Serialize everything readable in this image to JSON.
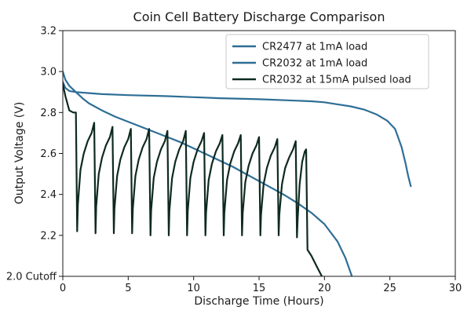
{
  "chart_data": {
    "type": "line",
    "title": "Coin Cell Battery Discharge Comparison",
    "xlabel": "Discharge Time (Hours)",
    "ylabel": "Output Voltage (V)",
    "xlim": [
      0,
      30
    ],
    "ylim": [
      2.0,
      3.2
    ],
    "x_ticks": [
      0,
      5,
      10,
      15,
      20,
      25,
      30
    ],
    "y_ticks": [
      2.0,
      2.2,
      2.4,
      2.6,
      2.8,
      3.0,
      3.2
    ],
    "y_tick_labels": [
      "2.0 Cutoff",
      "2.2",
      "2.4",
      "2.6",
      "2.8",
      "3.0",
      "3.2"
    ],
    "grid": false,
    "legend_position": "top-right",
    "series": [
      {
        "name": "CR2477 at 1mA load",
        "color": "#2e6e96",
        "points": [
          [
            0,
            2.95
          ],
          [
            0.2,
            2.92
          ],
          [
            0.5,
            2.905
          ],
          [
            1,
            2.9
          ],
          [
            2,
            2.895
          ],
          [
            3,
            2.89
          ],
          [
            5,
            2.885
          ],
          [
            8,
            2.88
          ],
          [
            10,
            2.875
          ],
          [
            12,
            2.87
          ],
          [
            15,
            2.865
          ],
          [
            17,
            2.86
          ],
          [
            19,
            2.855
          ],
          [
            20,
            2.85
          ],
          [
            21,
            2.84
          ],
          [
            22,
            2.83
          ],
          [
            23,
            2.815
          ],
          [
            24,
            2.79
          ],
          [
            24.8,
            2.76
          ],
          [
            25.4,
            2.72
          ],
          [
            25.9,
            2.63
          ],
          [
            26.2,
            2.55
          ],
          [
            26.4,
            2.49
          ],
          [
            26.6,
            2.44
          ]
        ]
      },
      {
        "name": "CR2032 at 1mA load",
        "color": "#2e6e96",
        "points": [
          [
            0,
            3.0
          ],
          [
            0.2,
            2.96
          ],
          [
            0.5,
            2.93
          ],
          [
            1,
            2.9
          ],
          [
            1.5,
            2.87
          ],
          [
            2,
            2.845
          ],
          [
            3,
            2.81
          ],
          [
            4,
            2.78
          ],
          [
            5,
            2.755
          ],
          [
            6,
            2.73
          ],
          [
            7,
            2.705
          ],
          [
            8,
            2.68
          ],
          [
            9,
            2.655
          ],
          [
            10,
            2.625
          ],
          [
            11,
            2.595
          ],
          [
            12,
            2.565
          ],
          [
            13,
            2.535
          ],
          [
            14,
            2.5
          ],
          [
            15,
            2.465
          ],
          [
            16,
            2.43
          ],
          [
            17,
            2.395
          ],
          [
            18,
            2.355
          ],
          [
            19,
            2.31
          ],
          [
            20,
            2.255
          ],
          [
            21,
            2.17
          ],
          [
            21.6,
            2.09
          ],
          [
            22.1,
            2.0
          ]
        ]
      },
      {
        "name": "CR2032 at 15mA pulsed load",
        "color": "#0e2a1e",
        "points": [
          [
            0,
            2.94
          ],
          [
            0.2,
            2.88
          ],
          [
            0.5,
            2.81
          ],
          [
            0.8,
            2.8
          ],
          [
            1.0,
            2.8
          ],
          [
            1.1,
            2.22
          ],
          [
            1.15,
            2.35
          ],
          [
            1.35,
            2.52
          ],
          [
            1.6,
            2.6
          ],
          [
            1.9,
            2.66
          ],
          [
            2.2,
            2.7
          ],
          [
            2.4,
            2.75
          ],
          [
            2.5,
            2.21
          ],
          [
            2.55,
            2.34
          ],
          [
            2.75,
            2.5
          ],
          [
            3.0,
            2.58
          ],
          [
            3.3,
            2.64
          ],
          [
            3.6,
            2.68
          ],
          [
            3.8,
            2.73
          ],
          [
            3.9,
            2.21
          ],
          [
            3.95,
            2.33
          ],
          [
            4.15,
            2.49
          ],
          [
            4.4,
            2.57
          ],
          [
            4.7,
            2.63
          ],
          [
            5.0,
            2.67
          ],
          [
            5.2,
            2.72
          ],
          [
            5.3,
            2.21
          ],
          [
            5.35,
            2.33
          ],
          [
            5.55,
            2.49
          ],
          [
            5.8,
            2.57
          ],
          [
            6.1,
            2.63
          ],
          [
            6.4,
            2.67
          ],
          [
            6.6,
            2.72
          ],
          [
            6.7,
            2.2
          ],
          [
            6.75,
            2.32
          ],
          [
            6.95,
            2.48
          ],
          [
            7.2,
            2.56
          ],
          [
            7.5,
            2.62
          ],
          [
            7.8,
            2.66
          ],
          [
            8.0,
            2.71
          ],
          [
            8.1,
            2.2
          ],
          [
            8.15,
            2.32
          ],
          [
            8.35,
            2.48
          ],
          [
            8.6,
            2.56
          ],
          [
            8.9,
            2.62
          ],
          [
            9.2,
            2.66
          ],
          [
            9.4,
            2.71
          ],
          [
            9.5,
            2.2
          ],
          [
            9.55,
            2.32
          ],
          [
            9.75,
            2.48
          ],
          [
            10.0,
            2.56
          ],
          [
            10.3,
            2.62
          ],
          [
            10.6,
            2.66
          ],
          [
            10.8,
            2.7
          ],
          [
            10.9,
            2.2
          ],
          [
            10.95,
            2.31
          ],
          [
            11.15,
            2.47
          ],
          [
            11.4,
            2.55
          ],
          [
            11.7,
            2.61
          ],
          [
            12.0,
            2.65
          ],
          [
            12.2,
            2.69
          ],
          [
            12.3,
            2.2
          ],
          [
            12.35,
            2.31
          ],
          [
            12.55,
            2.47
          ],
          [
            12.8,
            2.55
          ],
          [
            13.1,
            2.61
          ],
          [
            13.4,
            2.65
          ],
          [
            13.6,
            2.69
          ],
          [
            13.7,
            2.2
          ],
          [
            13.75,
            2.31
          ],
          [
            13.95,
            2.46
          ],
          [
            14.2,
            2.54
          ],
          [
            14.5,
            2.6
          ],
          [
            14.8,
            2.64
          ],
          [
            15.0,
            2.68
          ],
          [
            15.1,
            2.2
          ],
          [
            15.15,
            2.3
          ],
          [
            15.35,
            2.45
          ],
          [
            15.6,
            2.53
          ],
          [
            15.9,
            2.59
          ],
          [
            16.2,
            2.63
          ],
          [
            16.4,
            2.67
          ],
          [
            16.5,
            2.2
          ],
          [
            16.55,
            2.3
          ],
          [
            16.75,
            2.45
          ],
          [
            17.0,
            2.53
          ],
          [
            17.3,
            2.58
          ],
          [
            17.6,
            2.62
          ],
          [
            17.8,
            2.66
          ],
          [
            17.9,
            2.19
          ],
          [
            17.95,
            2.28
          ],
          [
            18.1,
            2.45
          ],
          [
            18.3,
            2.56
          ],
          [
            18.5,
            2.61
          ],
          [
            18.6,
            2.62
          ],
          [
            18.7,
            2.13
          ],
          [
            19.0,
            2.1
          ],
          [
            19.4,
            2.05
          ],
          [
            19.8,
            2.0
          ]
        ]
      }
    ]
  }
}
